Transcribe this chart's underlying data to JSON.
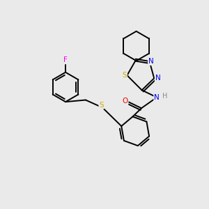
{
  "background_color": "#eaeaea",
  "bond_color": "#000000",
  "atom_colors": {
    "S": "#ccaa00",
    "N": "#0000ee",
    "O": "#ee0000",
    "F": "#ee00ee",
    "H": "#888888",
    "C": "#000000"
  },
  "figsize": [
    3.0,
    3.0
  ],
  "dpi": 100
}
